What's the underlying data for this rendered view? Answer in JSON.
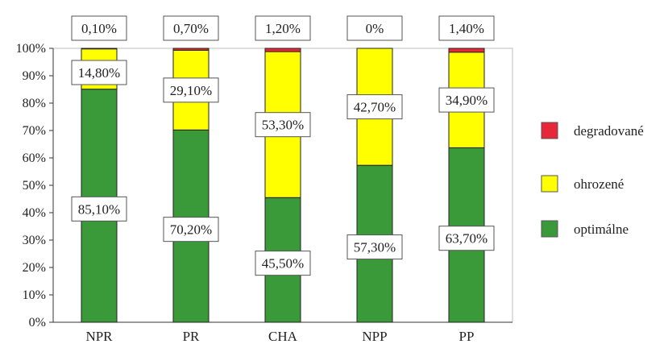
{
  "chart_data": {
    "type": "bar",
    "stacked": true,
    "categories": [
      "NPR",
      "PR",
      "CHA",
      "NPP",
      "PP"
    ],
    "series": [
      {
        "name": "optimálne",
        "color": "#3a9a3a",
        "values": [
          85.1,
          70.2,
          45.5,
          57.3,
          63.7
        ],
        "labels": [
          "85,10%",
          "70,20%",
          "45,50%",
          "57,30%",
          "63,70%"
        ]
      },
      {
        "name": "ohrozené",
        "color": "#ffff00",
        "values": [
          14.8,
          29.1,
          53.3,
          42.7,
          34.9
        ],
        "labels": [
          "14,80%",
          "29,10%",
          "53,30%",
          "42,70%",
          "34,90%"
        ]
      },
      {
        "name": "degradované",
        "color": "#e8283a",
        "values": [
          0.1,
          0.7,
          1.2,
          0.0,
          1.4
        ],
        "labels": [
          "0,10%",
          "0,70%",
          "1,20%",
          "0%",
          "1,40%"
        ]
      }
    ],
    "ylim": [
      0,
      100
    ],
    "yticks": [
      "0%",
      "10%",
      "20%",
      "30%",
      "40%",
      "50%",
      "60%",
      "70%",
      "80%",
      "90%",
      "100%"
    ],
    "grid": false,
    "legend": {
      "position": "right",
      "order": [
        "degradované",
        "ohrozené",
        "optimálne"
      ]
    }
  }
}
